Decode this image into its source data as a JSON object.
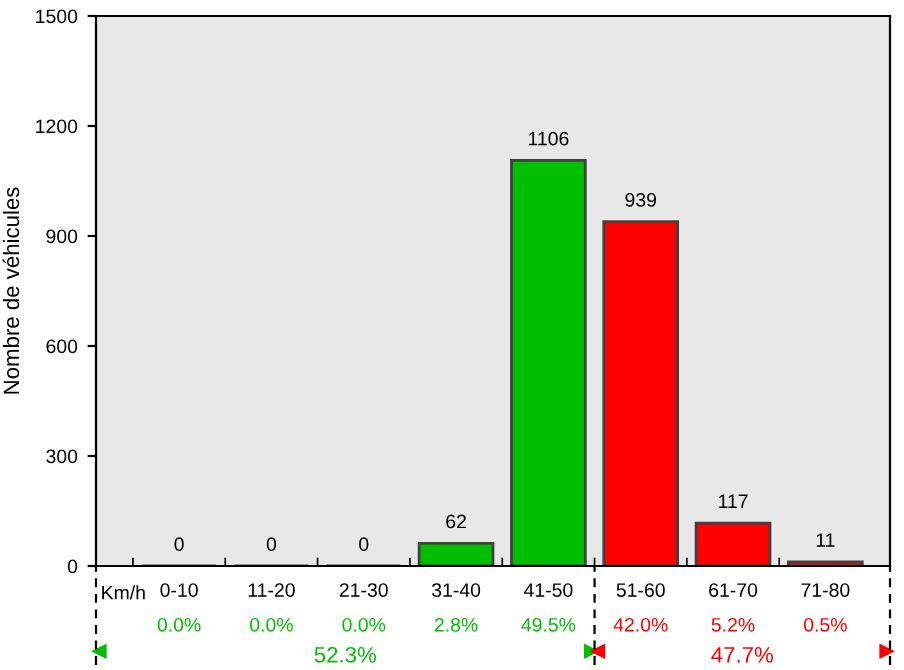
{
  "chart_data": {
    "type": "bar",
    "ylabel": "Nombre de véhicules",
    "xlabel": "Km/h",
    "categories": [
      "0-10",
      "11-20",
      "21-30",
      "31-40",
      "41-50",
      "51-60",
      "61-70",
      "71-80"
    ],
    "values": [
      0,
      0,
      0,
      62,
      1106,
      939,
      117,
      11
    ],
    "colors": [
      "#00bf00",
      "#00bf00",
      "#00bf00",
      "#00bf00",
      "#00bf00",
      "#ff0000",
      "#ff0000",
      "#ff0000"
    ],
    "ylim": [
      0,
      1500
    ],
    "yticks": [
      0,
      300,
      600,
      900,
      1200,
      1500
    ],
    "data_labels": true,
    "annotations": [
      "0.0%",
      "0.0%",
      "0.0%",
      "2.8%",
      "49.5%",
      "42.0%",
      "5.2%",
      "0.5%",
      "52.3%",
      "47.7%"
    ]
  }
}
